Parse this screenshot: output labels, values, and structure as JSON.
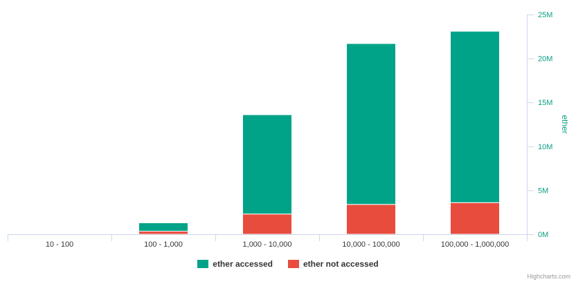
{
  "chart_data": {
    "type": "bar",
    "stacked": true,
    "categories": [
      "10 - 100",
      "100 - 1,000",
      "1,000 - 10,000",
      "10,000 - 100,000",
      "100,000 - 1,000,000"
    ],
    "series": [
      {
        "name": "ether not accessed",
        "color": "#e84c3d",
        "values": [
          0.02,
          0.35,
          2.3,
          3.4,
          3.6
        ]
      },
      {
        "name": "ether accessed",
        "color": "#00a388",
        "values": [
          0.03,
          0.95,
          11.3,
          18.3,
          19.5
        ]
      }
    ],
    "ylabel": "ether",
    "ylim": [
      0,
      25
    ],
    "yticks": [
      0,
      5,
      10,
      15,
      20,
      25
    ],
    "ytick_labels": [
      "0M",
      "5M",
      "10M",
      "15M",
      "20M",
      "25M"
    ],
    "grid": false,
    "legend_position": "bottom",
    "legend_order": [
      "ether accessed",
      "ether not accessed"
    ]
  },
  "legend": {
    "accessed_label": "ether accessed",
    "not_accessed_label": "ether not accessed",
    "accessed_color": "#00a388",
    "not_accessed_color": "#e84c3d"
  },
  "credits": "Highcharts.com"
}
